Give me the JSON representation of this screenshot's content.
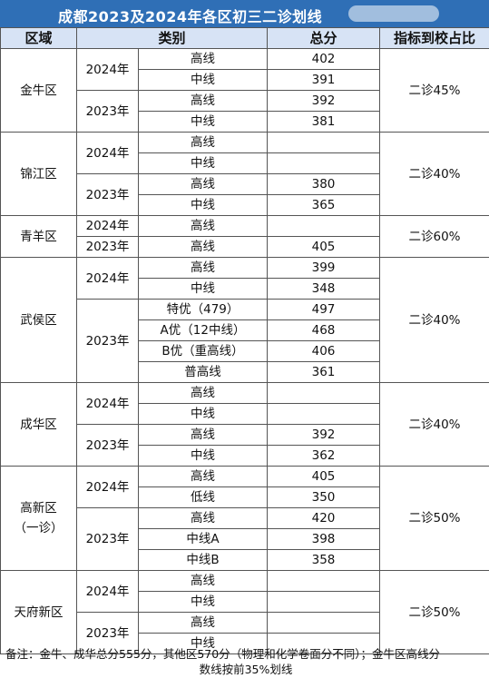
{
  "title": "成都2023及2024年各区初三二诊划线",
  "headers": {
    "region": "区域",
    "category": "类别",
    "total": "总分",
    "ratio": "指标到校占比"
  },
  "districts": [
    {
      "name": "金牛区",
      "ratio": "二诊45%",
      "years": [
        {
          "year": "2024年",
          "rows": [
            {
              "label": "高线",
              "score": "402"
            },
            {
              "label": "中线",
              "score": "391"
            }
          ]
        },
        {
          "year": "2023年",
          "rows": [
            {
              "label": "高线",
              "score": "392"
            },
            {
              "label": "中线",
              "score": "381"
            }
          ]
        }
      ]
    },
    {
      "name": "锦江区",
      "ratio": "二诊40%",
      "years": [
        {
          "year": "2024年",
          "rows": [
            {
              "label": "高线",
              "score": ""
            },
            {
              "label": "中线",
              "score": ""
            }
          ]
        },
        {
          "year": "2023年",
          "rows": [
            {
              "label": "高线",
              "score": "380"
            },
            {
              "label": "中线",
              "score": "365"
            }
          ]
        }
      ]
    },
    {
      "name": "青羊区",
      "ratio": "二诊60%",
      "years": [
        {
          "year": "2024年",
          "rows": [
            {
              "label": "高线",
              "score": ""
            }
          ]
        },
        {
          "year": "2023年",
          "rows": [
            {
              "label": "高线",
              "score": "405"
            }
          ]
        }
      ]
    },
    {
      "name": "武侯区",
      "ratio": "二诊40%",
      "years": [
        {
          "year": "2024年",
          "rows": [
            {
              "label": "高线",
              "score": "399"
            },
            {
              "label": "中线",
              "score": "348"
            }
          ]
        },
        {
          "year": "2023年",
          "rows": [
            {
              "label": "特优（479）",
              "score": "497"
            },
            {
              "label": "A优（12中线）",
              "score": "468"
            },
            {
              "label": "B优（重高线）",
              "score": "406"
            },
            {
              "label": "普高线",
              "score": "361"
            }
          ]
        }
      ]
    },
    {
      "name": "成华区",
      "ratio": "二诊40%",
      "years": [
        {
          "year": "2024年",
          "rows": [
            {
              "label": "高线",
              "score": ""
            },
            {
              "label": "中线",
              "score": ""
            }
          ]
        },
        {
          "year": "2023年",
          "rows": [
            {
              "label": "高线",
              "score": "392"
            },
            {
              "label": "中线",
              "score": "362"
            }
          ]
        }
      ]
    },
    {
      "name": "高新区",
      "name2": "（一诊）",
      "ratio": "二诊50%",
      "years": [
        {
          "year": "2024年",
          "rows": [
            {
              "label": "高线",
              "score": "405"
            },
            {
              "label": "低线",
              "score": "350"
            }
          ]
        },
        {
          "year": "2023年",
          "rows": [
            {
              "label": "高线",
              "score": "420"
            },
            {
              "label": "中线A",
              "score": "398"
            },
            {
              "label": "中线B",
              "score": "358"
            }
          ]
        }
      ]
    },
    {
      "name": "天府新区",
      "ratio": "二诊50%",
      "years": [
        {
          "year": "2024年",
          "rows": [
            {
              "label": "高线",
              "score": ""
            },
            {
              "label": "中线",
              "score": ""
            }
          ]
        },
        {
          "year": "2023年",
          "rows": [
            {
              "label": "高线",
              "score": ""
            },
            {
              "label": "中线",
              "score": ""
            }
          ]
        }
      ]
    }
  ],
  "note_line1": "备注：金牛、成华总分555分，其他区570分（物理和化学卷面分不同）；金牛区高线分",
  "note_line2": "数线按前35%划线"
}
